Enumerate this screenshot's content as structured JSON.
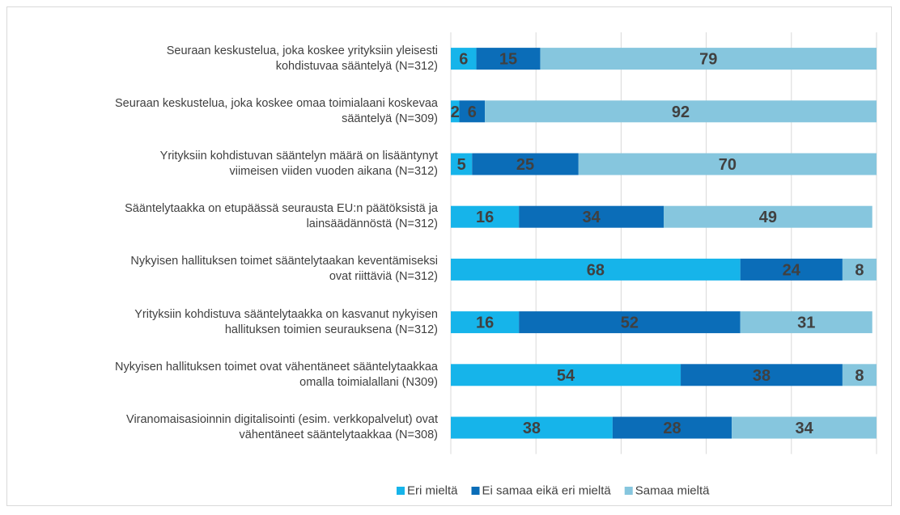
{
  "chart_data": {
    "type": "stacked_barh",
    "categories": [
      "Seuraan keskustelua, joka koskee yrityksiin yleisesti\nkohdistuvaa sääntelyä (N=312)",
      "Seuraan keskustelua, joka koskee omaa toimialaani koskevaa\nsääntelyä (N=309)",
      "Yrityksiin kohdistuvan sääntelyn määrä on lisääntynyt\nviimeisen viiden vuoden aikana (N=312)",
      "Sääntelytaakka on etupäässä seurausta EU:n päätöksistä ja\nlainsäädännöstä  (N=312)",
      "Nykyisen hallituksen toimet sääntelytaakan keventämiseksi\novat riittäviä  (N=312)",
      "Yrityksiin kohdistuva sääntelytaakka on kasvanut nykyisen\nhallituksen toimien seurauksena  (N=312)",
      "Nykyisen hallituksen toimet ovat vähentäneet sääntelytaakkaa\nomalla toimialallani (N309)",
      "Viranomaisasioinnin digitalisointi (esim. verkkopalvelut) ovat\nvähentäneet sääntelytaakkaa (N=308)"
    ],
    "series": [
      {
        "name": "Eri mieltä",
        "color": "#16b4ea",
        "values": [
          6,
          2,
          5,
          16,
          68,
          16,
          54,
          38
        ]
      },
      {
        "name": "Ei samaa eikä eri mieltä",
        "color": "#0b6db8",
        "values": [
          15,
          6,
          25,
          34,
          24,
          52,
          38,
          28
        ]
      },
      {
        "name": "Samaa mieltä",
        "color": "#86c6de",
        "values": [
          79,
          92,
          70,
          49,
          8,
          31,
          8,
          34
        ]
      }
    ],
    "xlim": [
      0,
      100
    ],
    "xticks": [
      0,
      20,
      40,
      60,
      80,
      100
    ],
    "grid": true,
    "legend": "bottom"
  }
}
